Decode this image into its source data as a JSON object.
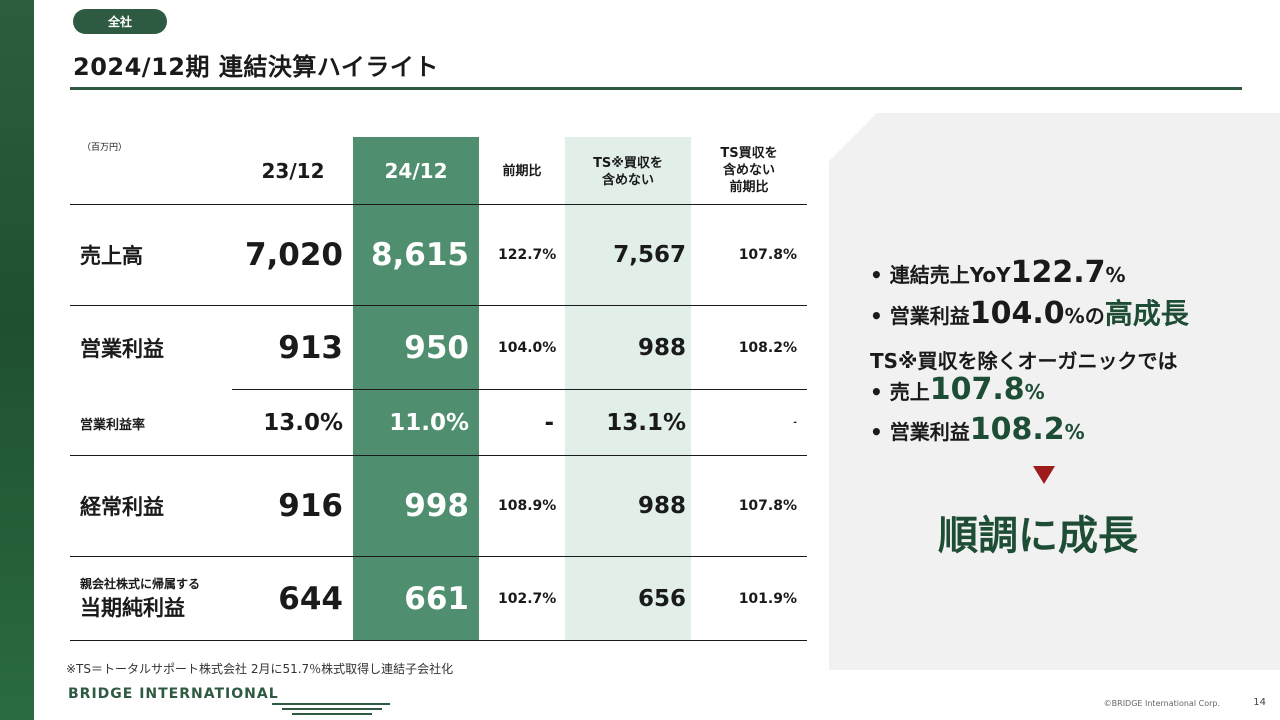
{
  "badge": "全社",
  "title": "2024/12期 連結決算ハイライト",
  "table": {
    "unit": "（百万円）",
    "headers": {
      "y23": "23/12",
      "y24": "24/12",
      "yoy": "前期比",
      "ts_excl_1": "TS※買収を",
      "ts_excl_2": "含めない",
      "ts_yoy_1": "TS買収を",
      "ts_yoy_2": "含めない",
      "ts_yoy_3": "前期比"
    },
    "rows": [
      {
        "label": "売上高",
        "y23": "7,020",
        "y24": "8,615",
        "yoy": "122.7%",
        "ts": "7,567",
        "ts_yoy": "107.8%"
      },
      {
        "label": "営業利益",
        "y23": "913",
        "y24": "950",
        "yoy": "104.0%",
        "ts": "988",
        "ts_yoy": "108.2%"
      },
      {
        "label": "営業利益率",
        "y23": "13.0%",
        "y24": "11.0%",
        "yoy": "-",
        "ts": "13.1%",
        "ts_yoy": "-"
      },
      {
        "label": "経常利益",
        "y23": "916",
        "y24": "998",
        "yoy": "108.9%",
        "ts": "988",
        "ts_yoy": "107.8%"
      },
      {
        "label_line1": "親会社株式に帰属する",
        "label_line2": "当期純利益",
        "y23": "644",
        "y24": "661",
        "yoy": "102.7%",
        "ts": "656",
        "ts_yoy": "101.9%"
      }
    ]
  },
  "footnote": "※TS＝トータルサポート株式会社 2月に51.7％株式取得し連結子会社化",
  "logo": "BRIDGE INTERNATIONAL",
  "copyright": "©BRIDGE International Corp.",
  "page_number": "14",
  "summary": {
    "b1_pre": "• 連結売上YoY",
    "b1_num": "122.7",
    "b1_pct": "%",
    "b2_pre": "• 営業利益",
    "b2_num": "104.0",
    "b2_pct": "%の",
    "b2_emph": "高成長",
    "ts_line": "TS※買収を除くオーガニックでは",
    "b3_pre": "• 売上",
    "b3_num": "107.8",
    "b3_pct": "%",
    "b4_pre": "• 営業利益",
    "b4_num": "108.2",
    "b4_pct": "%",
    "conclusion": "順調に成長"
  },
  "colors": {
    "brand_green": "#2e5a42",
    "highlight_column": "#4f8f6f",
    "ts_column": "#e1efe8",
    "arrow": "#9e1b1b"
  }
}
